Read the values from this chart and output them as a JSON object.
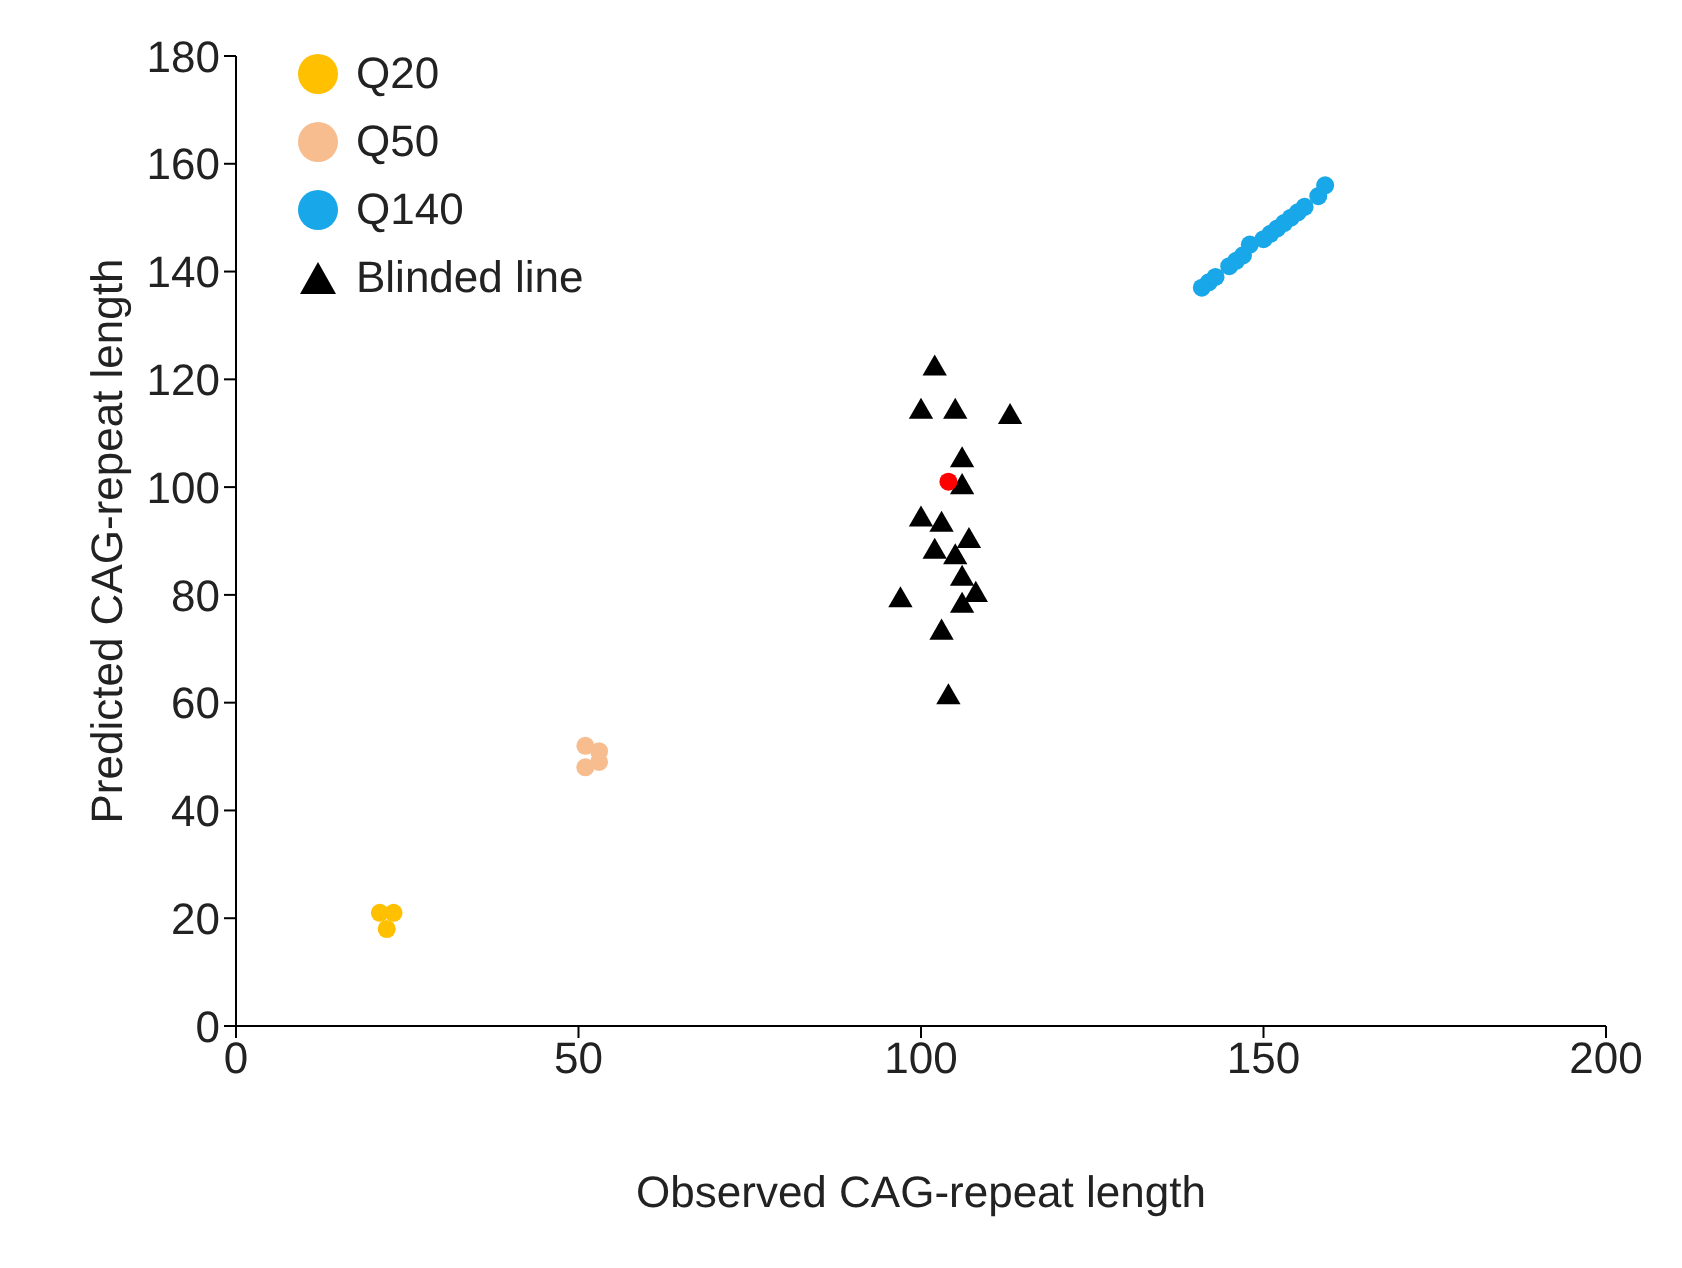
{
  "chart_data": {
    "type": "scatter",
    "xlabel": "Observed CAG-repeat length",
    "ylabel": "Predicted CAG-repeat length",
    "xlim": [
      0,
      200
    ],
    "xticks": [
      0,
      50,
      100,
      150,
      200
    ],
    "ylim": [
      0,
      180
    ],
    "yticks": [
      0,
      20,
      40,
      60,
      80,
      100,
      120,
      140,
      160,
      180
    ],
    "grid": false,
    "legend": "top left",
    "series": [
      {
        "name": "Q20",
        "color": "#ffc000",
        "marker": "circle",
        "x": [
          21,
          23,
          22
        ],
        "values": [
          21,
          21,
          18
        ]
      },
      {
        "name": "Q50",
        "color": "#f7bd8f",
        "marker": "circle",
        "x": [
          51,
          53,
          51,
          53
        ],
        "values": [
          48,
          51,
          52,
          49
        ]
      },
      {
        "name": "Q140",
        "color": "#18a7e8",
        "marker": "circle",
        "x": [
          141,
          142,
          143,
          145,
          146,
          147,
          148,
          150,
          151,
          152,
          153,
          154,
          155,
          156,
          158,
          159
        ],
        "values": [
          137,
          138,
          139,
          141,
          142,
          143,
          145,
          146,
          147,
          148,
          149,
          150,
          151,
          152,
          154,
          156
        ]
      },
      {
        "name": "Blinded line",
        "color": "#000000",
        "marker": "triangle",
        "x": [
          102,
          100,
          105,
          113,
          106,
          106,
          100,
          103,
          107,
          102,
          105,
          106,
          108,
          97,
          106,
          103,
          104
        ],
        "values": [
          122,
          114,
          114,
          113,
          105,
          100,
          94,
          93,
          90,
          88,
          87,
          83,
          80,
          79,
          78,
          73,
          61
        ]
      },
      {
        "color": "#ff0000",
        "marker": "circle",
        "x": [
          104
        ],
        "values": [
          101
        ]
      }
    ]
  }
}
